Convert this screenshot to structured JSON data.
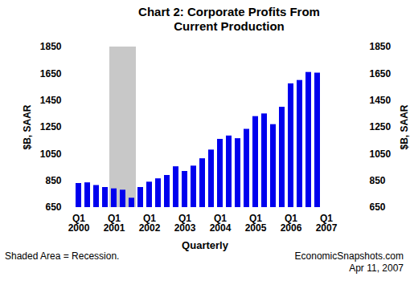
{
  "chart_data": {
    "type": "bar",
    "title": "Chart 2: Corporate Profits From Current Production",
    "y_label": "$B, SAAR",
    "x_label": "Quarterly",
    "annotations": [
      "Shaded Area = Recession.",
      "EconomicSnapshots.com",
      "Apr 11, 2007"
    ],
    "categories": [
      "Q1\n2000",
      null,
      null,
      null,
      "Q1\n2001",
      null,
      null,
      null,
      "Q1\n2002",
      null,
      null,
      null,
      "Q1\n2003",
      null,
      null,
      null,
      "Q1\n2004",
      null,
      null,
      null,
      "Q1\n2005",
      null,
      null,
      null,
      "Q1\n2006",
      null,
      null,
      null,
      "Q1\n2007",
      null,
      null,
      null
    ],
    "values": [
      830,
      835,
      815,
      800,
      790,
      780,
      720,
      800,
      840,
      865,
      890,
      955,
      920,
      960,
      1015,
      1080,
      1160,
      1185,
      1165,
      1235,
      1330,
      1350,
      1270,
      1400,
      1575,
      1600,
      1660,
      1655,
      null,
      null,
      null,
      null
    ],
    "color": "#0000ee",
    "shaded": [
      4,
      6
    ],
    "ylim": [
      650,
      1850
    ],
    "yticks": [
      650,
      850,
      1050,
      1250,
      1450,
      1650,
      1850
    ]
  }
}
